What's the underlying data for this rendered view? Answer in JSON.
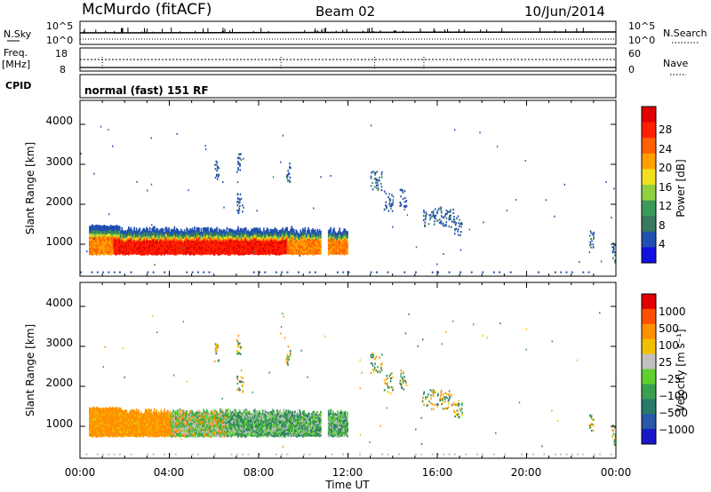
{
  "header": {
    "title": "McMurdo (fitACF)",
    "beam": "Beam 02",
    "date": "10/Jun/2014"
  },
  "summary": {
    "nsky": {
      "label": "N.Sky",
      "ticks": [
        "10^5",
        "10^0"
      ],
      "right_label": "N.Search",
      "right_ticks": [
        "10^5",
        "10^0"
      ]
    },
    "freq": {
      "label_line1": "Freq.",
      "label_line2": "[MHz]",
      "ticks": [
        "18",
        "8"
      ],
      "right_label": "Nave",
      "right_ticks": [
        "60",
        "0"
      ]
    },
    "cpid": {
      "label": "CPID",
      "value": "normal (fast) 151 RF"
    }
  },
  "chart_data": [
    {
      "type": "heatmap",
      "name": "power",
      "ylabel": "Slant Range [km]",
      "yticks": [
        "4000",
        "3000",
        "2000",
        "1000"
      ],
      "ylim": [
        200,
        4600
      ],
      "xlim": [
        0,
        24
      ],
      "colorbar": {
        "label": "Power [dB]",
        "ticks": [
          "28",
          "24",
          "20",
          "16",
          "12",
          "8",
          "4"
        ],
        "range": [
          0,
          32
        ],
        "colors": [
          "#1010e0",
          "#2050b0",
          "#3a7860",
          "#3c9a58",
          "#90d040",
          "#f0e020",
          "#ffa000",
          "#ff6000",
          "#ff2000",
          "#e00000"
        ]
      }
    },
    {
      "type": "heatmap",
      "name": "velocity",
      "ylabel": "Slant Range [km]",
      "yticks": [
        "4000",
        "3000",
        "2000",
        "1000"
      ],
      "ylim": [
        200,
        4600
      ],
      "xlim": [
        0,
        24
      ],
      "xticks": [
        "00:00",
        "04:00",
        "08:00",
        "12:00",
        "16:00",
        "20:00",
        "00:00"
      ],
      "xlabel": "Time UT",
      "colorbar": {
        "label": "Velocity [m s⁻¹]",
        "ticks": [
          "1000",
          "500",
          "100",
          "25",
          "−25",
          "−100",
          "−500",
          "−1000"
        ],
        "colors": [
          "#1818c8",
          "#2858a8",
          "#2a7a6a",
          "#3aa050",
          "#60d030",
          "#c0c0c0",
          "#f0c000",
          "#ff9000",
          "#ff5000",
          "#e00000"
        ]
      }
    }
  ]
}
